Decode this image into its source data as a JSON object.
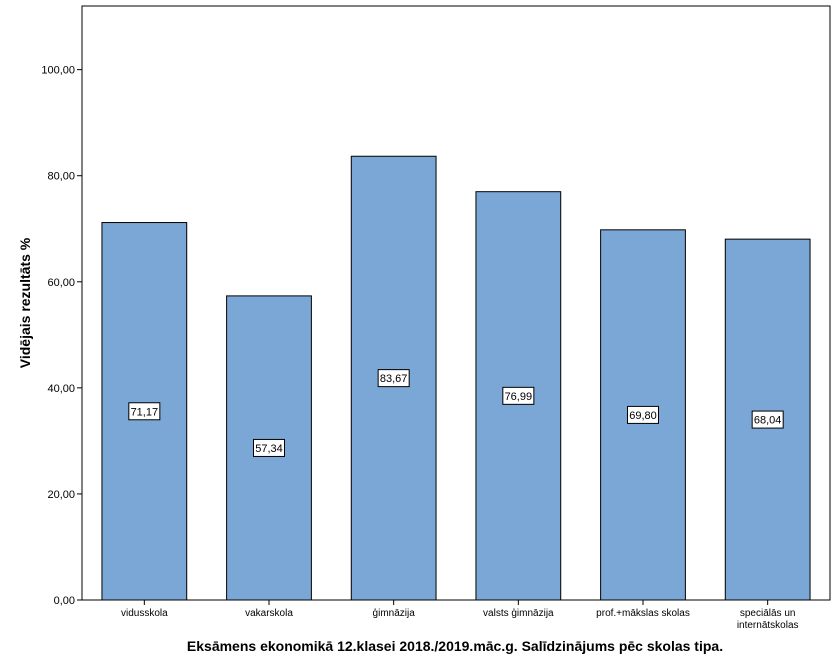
{
  "chart_data": {
    "type": "bar",
    "categories": [
      "vidusskola",
      "vakarskola",
      "ģimnāzija",
      "valsts ģimnāzija",
      "prof.+mākslas skolas",
      "speciālās un internātskolas"
    ],
    "category_lines": [
      [
        "vidusskola"
      ],
      [
        "vakarskola"
      ],
      [
        "ģimnāzija"
      ],
      [
        "valsts ģimnāzija"
      ],
      [
        "prof.+mākslas skolas"
      ],
      [
        "speciālās un",
        "internātskolas"
      ]
    ],
    "values": [
      71.17,
      57.34,
      83.67,
      76.99,
      69.8,
      68.04
    ],
    "data_labels": [
      "71,17",
      "57,34",
      "83,67",
      "76,99",
      "69,80",
      "68,04"
    ],
    "xlabel": "Eksāmens ekonomikā 12.klasei 2018./2019.māc.g. Salīdzinājums pēc skolas tipa.",
    "ylabel": "Vidējais rezultāts %",
    "ylim": [
      0,
      112
    ],
    "yticks": [
      0,
      20,
      40,
      60,
      80,
      100
    ],
    "ytick_labels": [
      "0,00",
      "20,00",
      "40,00",
      "60,00",
      "80,00",
      "100,00"
    ],
    "grid": false,
    "legend": false,
    "bar_color": "#7ba7d6",
    "bar_edge_color": "#000000"
  }
}
